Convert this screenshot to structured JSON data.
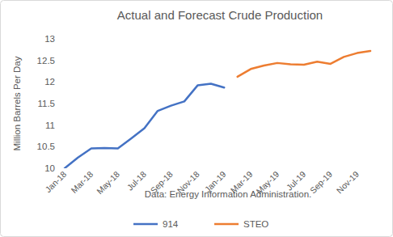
{
  "chart_data": {
    "type": "line",
    "title": "Actual and Forecast Crude Production",
    "y_label": "Million Barrels Per Day",
    "annotation": "Data: Energy Information Administration.",
    "categories": [
      "Jan-18",
      null,
      "Mar-18",
      null,
      "May-18",
      null,
      "Jul-18",
      null,
      "Sep-18",
      null,
      "Nov-18",
      null,
      "Jan-19",
      null,
      "Mar-19",
      null,
      "May-19",
      null,
      "Jul-19",
      null,
      "Sep-19",
      null,
      "Nov-19",
      null
    ],
    "series": [
      {
        "name": "914",
        "color": "#4472c4",
        "values": [
          10.0,
          10.25,
          10.46,
          10.47,
          10.46,
          10.69,
          10.93,
          11.33,
          11.45,
          11.55,
          11.92,
          11.96,
          11.87,
          null,
          null,
          null,
          null,
          null,
          null,
          null,
          null,
          null,
          null,
          null
        ]
      },
      {
        "name": "STEO",
        "color": "#ed7d31",
        "values": [
          null,
          null,
          null,
          null,
          null,
          null,
          null,
          null,
          null,
          null,
          null,
          null,
          null,
          12.12,
          12.3,
          12.38,
          12.44,
          12.41,
          12.4,
          12.47,
          12.42,
          12.58,
          12.67,
          12.72
        ]
      }
    ],
    "ylim": [
      10,
      13
    ],
    "yticks": [
      10,
      10.5,
      11,
      11.5,
      12,
      12.5,
      13
    ],
    "grid": false,
    "legend": "bottom"
  }
}
